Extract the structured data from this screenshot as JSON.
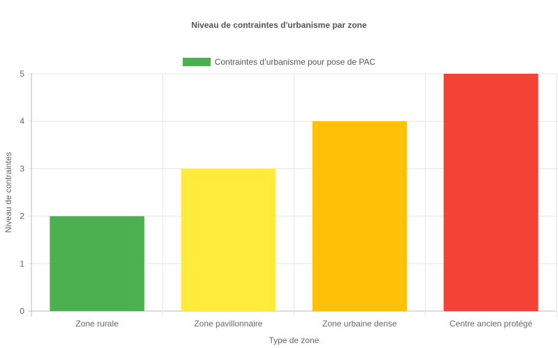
{
  "colors": {
    "grid": "#e5e5e5",
    "axis": "#bbbbbb",
    "text": "#666666",
    "title": "#555555",
    "bars": [
      "#4caf50",
      "#ffeb3b",
      "#ffc107",
      "#f44336"
    ],
    "legend_swatch": "#4caf50"
  },
  "chart_data": {
    "type": "bar",
    "title": "Niveau de contraintes d'urbanisme par zone",
    "xlabel": "Type de zone",
    "ylabel": "Niveau de contraintes",
    "categories": [
      "Zone rurale",
      "Zone pavillonnaire",
      "Zone urbaine dense",
      "Centre ancien protégé"
    ],
    "series": [
      {
        "name": "Contraintes d’urbanisme pour pose de PAC",
        "values": [
          2,
          3,
          4,
          5
        ]
      }
    ],
    "ylim": [
      0,
      5
    ],
    "yticks": [
      0,
      1,
      2,
      3,
      4,
      5
    ],
    "grid": true,
    "legend_position": "top"
  }
}
